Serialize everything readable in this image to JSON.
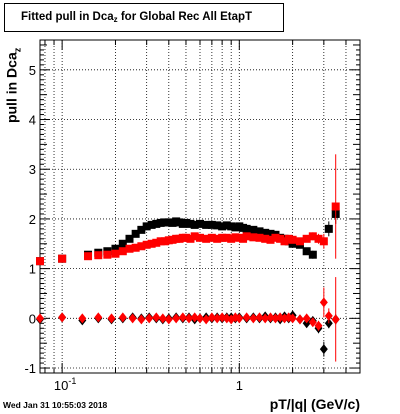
{
  "title": {
    "prefix": "Fitted pull in Dca",
    "subscript": "z",
    "suffix": " for Global Rec All EtapT"
  },
  "footer": {
    "timestamp": "Wed Jan 31 10:55:03 2018"
  },
  "colors": {
    "series_black": "#000000",
    "series_red": "#ff0000",
    "frame": "#000000"
  },
  "chart_data": {
    "type": "scatter",
    "xscale": "log",
    "xlim": [
      0.075,
      4.8
    ],
    "ylim": [
      -1.1,
      5.6
    ],
    "grid": true,
    "xlabel": "pT/|q| (GeV/c)",
    "ylabel": {
      "text": "pull in Dca",
      "subscript": "z"
    },
    "x_ticks": [
      {
        "value": 0.1,
        "label": "10",
        "sup": "-1"
      },
      {
        "value": 1,
        "label": "1",
        "sup": ""
      }
    ],
    "y_ticks": [
      {
        "value": -1,
        "label": "-1"
      },
      {
        "value": 0,
        "label": "0"
      },
      {
        "value": 1,
        "label": "1"
      },
      {
        "value": 2,
        "label": "2"
      },
      {
        "value": 3,
        "label": "3"
      },
      {
        "value": 4,
        "label": "4"
      },
      {
        "value": 5,
        "label": "5"
      }
    ],
    "series": [
      {
        "marker": "square",
        "color": "#000000",
        "x": [
          0.075,
          0.1,
          0.14,
          0.16,
          0.18,
          0.2,
          0.22,
          0.24,
          0.26,
          0.28,
          0.3,
          0.32,
          0.34,
          0.36,
          0.38,
          0.4,
          0.42,
          0.44,
          0.46,
          0.48,
          0.5,
          0.53,
          0.56,
          0.6,
          0.65,
          0.7,
          0.75,
          0.8,
          0.85,
          0.9,
          0.95,
          1.0,
          1.05,
          1.1,
          1.2,
          1.3,
          1.4,
          1.5,
          1.6,
          1.7,
          1.8,
          1.9,
          2.0,
          2.2,
          2.4,
          2.6,
          3.2,
          3.5
        ],
        "y": [
          1.15,
          1.2,
          1.28,
          1.32,
          1.35,
          1.4,
          1.5,
          1.6,
          1.7,
          1.78,
          1.85,
          1.88,
          1.9,
          1.92,
          1.93,
          1.93,
          1.92,
          1.95,
          1.93,
          1.9,
          1.92,
          1.9,
          1.88,
          1.9,
          1.88,
          1.88,
          1.87,
          1.85,
          1.87,
          1.85,
          1.83,
          1.85,
          1.82,
          1.8,
          1.78,
          1.75,
          1.72,
          1.7,
          1.68,
          1.62,
          1.6,
          1.55,
          1.5,
          1.48,
          1.35,
          1.28,
          1.8,
          2.1
        ],
        "yerr": [
          0.03,
          0.02,
          0.02,
          0.02,
          0.02,
          0.02,
          0.02,
          0.02,
          0.02,
          0.02,
          0.02,
          0.02,
          0.02,
          0.02,
          0.02,
          0.02,
          0.02,
          0.02,
          0.02,
          0.02,
          0.02,
          0.02,
          0.02,
          0.02,
          0.02,
          0.02,
          0.02,
          0.02,
          0.02,
          0.02,
          0.02,
          0.02,
          0.03,
          0.03,
          0.03,
          0.03,
          0.03,
          0.03,
          0.03,
          0.04,
          0.04,
          0.04,
          0.05,
          0.05,
          0.06,
          0.08,
          0.15,
          0.2
        ]
      },
      {
        "marker": "square",
        "color": "#ff0000",
        "x": [
          0.075,
          0.1,
          0.14,
          0.16,
          0.18,
          0.2,
          0.22,
          0.24,
          0.26,
          0.28,
          0.3,
          0.32,
          0.34,
          0.36,
          0.38,
          0.4,
          0.42,
          0.44,
          0.46,
          0.48,
          0.5,
          0.53,
          0.56,
          0.6,
          0.65,
          0.7,
          0.75,
          0.8,
          0.85,
          0.9,
          0.95,
          1.0,
          1.05,
          1.1,
          1.2,
          1.3,
          1.4,
          1.5,
          1.6,
          1.7,
          1.8,
          1.9,
          2.0,
          2.2,
          2.4,
          2.6,
          2.8,
          3.0,
          3.5
        ],
        "y": [
          1.15,
          1.2,
          1.25,
          1.27,
          1.28,
          1.3,
          1.35,
          1.4,
          1.42,
          1.45,
          1.48,
          1.5,
          1.52,
          1.55,
          1.55,
          1.57,
          1.58,
          1.6,
          1.6,
          1.62,
          1.62,
          1.6,
          1.65,
          1.62,
          1.6,
          1.62,
          1.6,
          1.62,
          1.62,
          1.6,
          1.63,
          1.62,
          1.6,
          1.65,
          1.63,
          1.62,
          1.6,
          1.58,
          1.62,
          1.6,
          1.55,
          1.6,
          1.58,
          1.55,
          1.6,
          1.65,
          1.6,
          1.55,
          2.25
        ],
        "yerr": [
          0.03,
          0.02,
          0.02,
          0.02,
          0.02,
          0.02,
          0.02,
          0.02,
          0.02,
          0.02,
          0.02,
          0.02,
          0.02,
          0.02,
          0.02,
          0.02,
          0.02,
          0.02,
          0.02,
          0.02,
          0.02,
          0.02,
          0.02,
          0.02,
          0.02,
          0.02,
          0.02,
          0.02,
          0.02,
          0.02,
          0.02,
          0.02,
          0.03,
          0.03,
          0.03,
          0.03,
          0.03,
          0.03,
          0.04,
          0.04,
          0.04,
          0.05,
          0.05,
          0.06,
          0.07,
          0.08,
          0.1,
          0.15,
          1.05
        ]
      },
      {
        "marker": "diamond",
        "color": "#000000",
        "x": [
          0.075,
          0.1,
          0.13,
          0.16,
          0.19,
          0.22,
          0.25,
          0.28,
          0.31,
          0.34,
          0.37,
          0.4,
          0.44,
          0.48,
          0.52,
          0.56,
          0.6,
          0.65,
          0.7,
          0.75,
          0.8,
          0.85,
          0.9,
          0.95,
          1.0,
          1.1,
          1.2,
          1.3,
          1.4,
          1.5,
          1.6,
          1.7,
          1.8,
          1.9,
          2.0,
          2.2,
          2.4,
          2.6,
          2.8,
          3.0,
          3.2,
          3.5
        ],
        "y": [
          -0.02,
          0.02,
          -0.04,
          0.0,
          -0.02,
          0.0,
          0.02,
          0.0,
          0.02,
          0.0,
          -0.02,
          0.0,
          0.02,
          0.0,
          0.02,
          -0.02,
          0.0,
          0.02,
          0.0,
          0.02,
          0.0,
          0.02,
          0.02,
          0.0,
          0.02,
          0.0,
          0.02,
          0.0,
          0.04,
          0.0,
          0.02,
          -0.02,
          0.04,
          0.0,
          0.06,
          -0.02,
          -0.1,
          -0.05,
          -0.2,
          -0.62,
          -0.1,
          -0.02
        ],
        "yerr": [
          0.03,
          0.02,
          0.02,
          0.02,
          0.02,
          0.02,
          0.02,
          0.02,
          0.02,
          0.02,
          0.02,
          0.02,
          0.02,
          0.02,
          0.02,
          0.02,
          0.02,
          0.02,
          0.02,
          0.02,
          0.02,
          0.02,
          0.02,
          0.02,
          0.02,
          0.02,
          0.02,
          0.02,
          0.03,
          0.03,
          0.03,
          0.03,
          0.04,
          0.04,
          0.05,
          0.05,
          0.06,
          0.07,
          0.1,
          0.15,
          0.1,
          0.1
        ]
      },
      {
        "marker": "diamond",
        "color": "#ff0000",
        "x": [
          0.075,
          0.1,
          0.13,
          0.16,
          0.19,
          0.22,
          0.25,
          0.28,
          0.31,
          0.34,
          0.37,
          0.4,
          0.44,
          0.48,
          0.52,
          0.56,
          0.6,
          0.65,
          0.7,
          0.75,
          0.8,
          0.85,
          0.9,
          0.95,
          1.0,
          1.1,
          1.2,
          1.3,
          1.4,
          1.5,
          1.6,
          1.7,
          1.8,
          1.9,
          2.0,
          2.2,
          2.4,
          2.6,
          2.8,
          3.0,
          3.2,
          3.5
        ],
        "y": [
          0.0,
          0.02,
          0.0,
          0.02,
          0.0,
          0.02,
          0.0,
          -0.02,
          0.0,
          0.02,
          0.0,
          -0.02,
          0.0,
          0.02,
          0.0,
          0.02,
          0.0,
          -0.02,
          0.02,
          0.0,
          0.02,
          0.0,
          -0.02,
          0.02,
          0.0,
          0.02,
          0.0,
          0.02,
          0.0,
          0.02,
          0.0,
          0.02,
          0.0,
          0.02,
          0.0,
          -0.02,
          0.0,
          -0.08,
          -0.15,
          0.32,
          0.05,
          -0.02
        ],
        "yerr": [
          0.03,
          0.02,
          0.02,
          0.02,
          0.02,
          0.02,
          0.02,
          0.02,
          0.02,
          0.02,
          0.02,
          0.02,
          0.02,
          0.02,
          0.02,
          0.02,
          0.02,
          0.02,
          0.02,
          0.02,
          0.02,
          0.02,
          0.02,
          0.02,
          0.02,
          0.02,
          0.02,
          0.02,
          0.03,
          0.03,
          0.03,
          0.03,
          0.04,
          0.04,
          0.05,
          0.05,
          0.06,
          0.07,
          0.1,
          0.3,
          0.15,
          0.85
        ]
      }
    ]
  }
}
